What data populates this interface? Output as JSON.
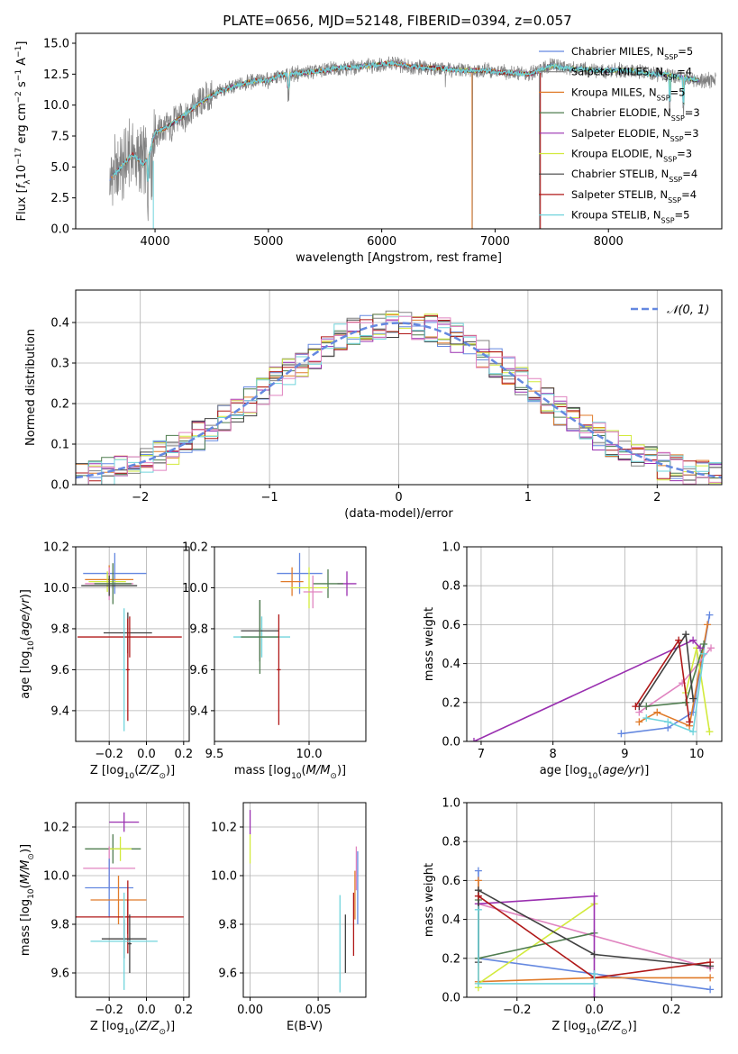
{
  "figure_title": "PLATE=0656, MJD=52148, FIBERID=0394, z=0.057",
  "colors": {
    "chabrier_miles": "#6488e0",
    "salpeter_miles": "#808080",
    "kroupa_miles": "#e07b2a",
    "chabrier_elodie": "#4f7d4f",
    "salpeter_elodie": "#9a30b0",
    "kroupa_elodie": "#d2ea3c",
    "chabrier_stelib": "#404040",
    "salpeter_stelib": "#b01818",
    "kroupa_stelib": "#70d4dc",
    "pink": "#e084c0",
    "observed": "#808080"
  },
  "chart_data": [
    {
      "id": "spectrum",
      "type": "line",
      "title": "PLATE=0656, MJD=52148, FIBERID=0394, z=0.057",
      "xlabel": "wavelength [Angstrom, rest frame]",
      "ylabel": "Flux [f_λ 10^-17 erg cm^-2 s^-1 A^-1]",
      "xlim": [
        3300,
        9000
      ],
      "ylim": [
        0,
        15.8
      ],
      "xticks": [
        "4000",
        "5000",
        "6000",
        "7000",
        "8000"
      ],
      "yticks": [
        "0.0",
        "2.5",
        "5.0",
        "7.5",
        "10.0",
        "12.5",
        "15.0"
      ],
      "grid": false,
      "legend_position": "right",
      "legend": [
        {
          "label": "Chabrier MILES, N",
          "sub": "SSP",
          "suffix": "=5",
          "color": "#6488e0"
        },
        {
          "label": "Salpeter MILES, N",
          "sub": "SSP",
          "suffix": "=4",
          "color": "#808080"
        },
        {
          "label": "Kroupa MILES, N",
          "sub": "SSP",
          "suffix": "=5",
          "color": "#e07b2a"
        },
        {
          "label": "Chabrier ELODIE, N",
          "sub": "SSP",
          "suffix": "=3",
          "color": "#4f7d4f"
        },
        {
          "label": "Salpeter ELODIE, N",
          "sub": "SSP",
          "suffix": "=3",
          "color": "#9a30b0"
        },
        {
          "label": "Kroupa ELODIE, N",
          "sub": "SSP",
          "suffix": "=3",
          "color": "#d2ea3c"
        },
        {
          "label": "Chabrier STELIB, N",
          "sub": "SSP",
          "suffix": "=4",
          "color": "#404040"
        },
        {
          "label": "Salpeter STELIB, N",
          "sub": "SSP",
          "suffix": "=4",
          "color": "#b01818"
        },
        {
          "label": "Kroupa STELIB, N",
          "sub": "SSP",
          "suffix": "=5",
          "color": "#70d4dc"
        }
      ],
      "continuum": {
        "x": [
          3600,
          3700,
          3800,
          3900,
          3950,
          4000,
          4100,
          4200,
          4300,
          4400,
          4500,
          4600,
          4700,
          4800,
          4900,
          5000,
          5100,
          5200,
          5300,
          5400,
          5500,
          5600,
          5700,
          5800,
          5900,
          6000,
          6100,
          6200,
          6300,
          6400,
          6500,
          6600,
          6700,
          6800,
          6900,
          7000,
          7100,
          7200,
          7300,
          7400,
          7500,
          7600,
          7700,
          7800,
          7900,
          8000,
          8100,
          8200,
          8300,
          8400,
          8500,
          8600,
          8800
        ],
        "y": [
          4.0,
          5.0,
          6.0,
          5.2,
          6.0,
          7.8,
          8.2,
          8.8,
          9.5,
          10.2,
          10.8,
          11.2,
          11.5,
          11.8,
          12.0,
          12.0,
          12.4,
          12.5,
          12.6,
          12.7,
          12.8,
          13.0,
          13.0,
          13.1,
          13.2,
          13.3,
          13.4,
          13.2,
          13.1,
          13.0,
          13.0,
          12.9,
          12.8,
          12.8,
          12.8,
          12.7,
          12.6,
          12.6,
          12.5,
          12.8,
          13.2,
          13.0,
          12.9,
          12.9,
          12.8,
          12.8,
          12.8,
          12.8,
          12.6,
          12.5,
          12.5,
          12.3,
          12.0
        ]
      }
    },
    {
      "id": "residuals",
      "type": "histogram",
      "xlabel": "(data-model)/error",
      "ylabel": "Normed distribution",
      "xlim": [
        -2.5,
        2.5
      ],
      "ylim": [
        0,
        0.48
      ],
      "xticks": [
        "−2",
        "−1",
        "0",
        "1",
        "2"
      ],
      "yticks": [
        "0.0",
        "0.1",
        "0.2",
        "0.3",
        "0.4"
      ],
      "grid": true,
      "legend": [
        {
          "label": "𝒩(0, 1)",
          "color": "#6488e0",
          "style": "dashed"
        }
      ],
      "bin_width": 0.1
    },
    {
      "id": "age_vs_Z",
      "type": "errorbar",
      "xlabel": "Z [log10(Z/Z⊙)]",
      "ylabel": "age  [log10(age/yr)]",
      "xlim": [
        -0.38,
        0.23
      ],
      "ylim": [
        9.25,
        10.2
      ],
      "xticks": [
        "−0.2",
        "0.0",
        "0.2"
      ],
      "yticks": [
        "9.4",
        "9.6",
        "9.8",
        "10.0",
        "10.2"
      ],
      "grid": true,
      "points": [
        {
          "x": -0.17,
          "y": 10.07,
          "xerr": 0.17,
          "yerr": 0.1,
          "color": "#6488e0"
        },
        {
          "x": -0.2,
          "y": 10.04,
          "xerr": 0.13,
          "yerr": 0.07,
          "color": "#e07b2a"
        },
        {
          "x": -0.21,
          "y": 10.03,
          "xerr": 0.1,
          "yerr": 0.05,
          "color": "#d2ea3c"
        },
        {
          "x": -0.2,
          "y": 10.02,
          "xerr": 0.13,
          "yerr": 0.08,
          "color": "#e084c0"
        },
        {
          "x": -0.18,
          "y": 10.02,
          "xerr": 0.1,
          "yerr": 0.1,
          "color": "#4f7d4f"
        },
        {
          "x": -0.2,
          "y": 10.01,
          "xerr": 0.15,
          "yerr": 0.05,
          "color": "#404040"
        },
        {
          "x": -0.1,
          "y": 9.78,
          "xerr": 0.13,
          "yerr": 0.1,
          "color": "#404040"
        },
        {
          "x": -0.09,
          "y": 9.76,
          "xerr": 0.28,
          "yerr": 0.1,
          "color": "#b01818"
        },
        {
          "x": -0.12,
          "y": 9.6,
          "xerr": 0.01,
          "yerr": 0.3,
          "color": "#70d4dc"
        },
        {
          "x": -0.1,
          "y": 9.6,
          "xerr": 0.01,
          "yerr": 0.25,
          "color": "#b01818"
        }
      ]
    },
    {
      "id": "age_vs_mass",
      "type": "errorbar",
      "xlabel": "mass [log10(M/M⊙)]",
      "xlim": [
        9.5,
        10.3
      ],
      "ylim": [
        9.25,
        10.2
      ],
      "xticks": [
        "9.5",
        "10.0"
      ],
      "yticks": [
        "9.4",
        "9.6",
        "9.8",
        "10.0",
        "10.2"
      ],
      "grid": true,
      "points": [
        {
          "x": 9.95,
          "y": 10.07,
          "xerr": 0.12,
          "yerr": 0.1,
          "color": "#6488e0"
        },
        {
          "x": 9.91,
          "y": 10.03,
          "xerr": 0.06,
          "yerr": 0.07,
          "color": "#e07b2a"
        },
        {
          "x": 10.2,
          "y": 10.02,
          "xerr": 0.05,
          "yerr": 0.06,
          "color": "#9a30b0"
        },
        {
          "x": 10.1,
          "y": 10.02,
          "xerr": 0.08,
          "yerr": 0.07,
          "color": "#4f7d4f"
        },
        {
          "x": 10.0,
          "y": 10.0,
          "xerr": 0.1,
          "yerr": 0.1,
          "color": "#d2ea3c"
        },
        {
          "x": 10.02,
          "y": 9.98,
          "xerr": 0.05,
          "yerr": 0.08,
          "color": "#e084c0"
        },
        {
          "x": 9.75,
          "y": 9.76,
          "xerr": 0.15,
          "yerr": 0.1,
          "color": "#70d4dc"
        },
        {
          "x": 9.74,
          "y": 9.79,
          "xerr": 0.1,
          "yerr": 0.15,
          "color": "#404040"
        },
        {
          "x": 9.74,
          "y": 9.76,
          "xerr": 0.1,
          "yerr": 0.18,
          "color": "#4f7d4f"
        },
        {
          "x": 9.84,
          "y": 9.6,
          "xerr": 0.01,
          "yerr": 0.27,
          "color": "#b01818"
        }
      ]
    },
    {
      "id": "weight_vs_age",
      "type": "line",
      "xlabel": "age  [log10(age/yr)]",
      "ylabel": "mass weight",
      "xlim": [
        6.8,
        10.35
      ],
      "ylim": [
        0,
        1
      ],
      "xticks": [
        "7",
        "8",
        "9",
        "10"
      ],
      "yticks": [
        "0.0",
        "0.2",
        "0.4",
        "0.6",
        "0.8",
        "1.0"
      ],
      "grid": true,
      "series": [
        {
          "color": "#6488e0",
          "x": [
            8.95,
            9.6,
            9.95,
            10.18
          ],
          "y": [
            0.04,
            0.07,
            0.15,
            0.65
          ]
        },
        {
          "color": "#e07b2a",
          "x": [
            9.2,
            9.45,
            9.9,
            10.15
          ],
          "y": [
            0.1,
            0.15,
            0.08,
            0.6
          ]
        },
        {
          "color": "#d2ea3c",
          "x": [
            9.85,
            10.0,
            10.18
          ],
          "y": [
            0.25,
            0.48,
            0.05
          ]
        },
        {
          "color": "#e084c0",
          "x": [
            9.2,
            9.8,
            10.2
          ],
          "y": [
            0.15,
            0.3,
            0.48
          ]
        },
        {
          "color": "#4f7d4f",
          "x": [
            9.3,
            9.85,
            10.1
          ],
          "y": [
            0.18,
            0.2,
            0.5
          ]
        },
        {
          "color": "#9a30b0",
          "x": [
            6.9,
            9.95,
            10.05
          ],
          "y": [
            0.0,
            0.52,
            0.48
          ]
        },
        {
          "color": "#404040",
          "x": [
            9.2,
            9.85,
            9.95
          ],
          "y": [
            0.18,
            0.55,
            0.22
          ]
        },
        {
          "color": "#b01818",
          "x": [
            9.15,
            9.75,
            9.9
          ],
          "y": [
            0.18,
            0.52,
            0.1
          ]
        },
        {
          "color": "#70d4dc",
          "x": [
            9.3,
            9.6,
            9.95,
            10.1
          ],
          "y": [
            0.12,
            0.1,
            0.05,
            0.45
          ]
        }
      ]
    },
    {
      "id": "mass_vs_Z",
      "type": "errorbar",
      "xlabel": "Z [log10(Z/Z⊙)]",
      "ylabel": "mass [log10(M/M⊙)]",
      "xlim": [
        -0.38,
        0.23
      ],
      "ylim": [
        9.5,
        10.3
      ],
      "xticks": [
        "−0.2",
        "0.0",
        "0.2"
      ],
      "yticks": [
        "9.6",
        "9.8",
        "10.0",
        "10.2"
      ],
      "grid": true,
      "points": [
        {
          "x": -0.12,
          "y": 10.22,
          "xerr": 0.08,
          "yerr": 0.04,
          "color": "#9a30b0"
        },
        {
          "x": -0.18,
          "y": 10.11,
          "xerr": 0.15,
          "yerr": 0.06,
          "color": "#4f7d4f"
        },
        {
          "x": -0.14,
          "y": 10.11,
          "xerr": 0.06,
          "yerr": 0.05,
          "color": "#d2ea3c"
        },
        {
          "x": -0.2,
          "y": 10.03,
          "xerr": 0.14,
          "yerr": 0.09,
          "color": "#e084c0"
        },
        {
          "x": -0.2,
          "y": 9.95,
          "xerr": 0.13,
          "yerr": 0.12,
          "color": "#6488e0"
        },
        {
          "x": -0.15,
          "y": 9.9,
          "xerr": 0.15,
          "yerr": 0.1,
          "color": "#e07b2a"
        },
        {
          "x": -0.1,
          "y": 9.83,
          "xerr": 0.3,
          "yerr": 0.07,
          "color": "#b01818"
        },
        {
          "x": -0.1,
          "y": 9.83,
          "xerr": 0.01,
          "yerr": 0.15,
          "color": "#b01818"
        },
        {
          "x": -0.12,
          "y": 9.74,
          "xerr": 0.12,
          "yerr": 0.08,
          "color": "#404040"
        },
        {
          "x": -0.09,
          "y": 9.72,
          "xerr": 0.01,
          "yerr": 0.12,
          "color": "#404040"
        },
        {
          "x": -0.12,
          "y": 9.73,
          "xerr": 0.18,
          "yerr": 0.2,
          "color": "#70d4dc"
        }
      ]
    },
    {
      "id": "mass_vs_EBV",
      "type": "errorbar",
      "xlabel": "E(B-V)",
      "xlim": [
        -0.005,
        0.085
      ],
      "ylim": [
        9.5,
        10.3
      ],
      "xticks": [
        "0.00",
        "0.05"
      ],
      "yticks": [
        "9.6",
        "9.8",
        "10.0",
        "10.2"
      ],
      "grid": true,
      "points": [
        {
          "x": 0.0,
          "y": 10.22,
          "xerr": 0,
          "yerr": 0.05,
          "color": "#9a30b0"
        },
        {
          "x": 0.0,
          "y": 10.11,
          "xerr": 0,
          "yerr": 0.06,
          "color": "#d2ea3c"
        },
        {
          "x": 0.078,
          "y": 10.03,
          "xerr": 0,
          "yerr": 0.09,
          "color": "#e084c0"
        },
        {
          "x": 0.077,
          "y": 9.92,
          "xerr": 0,
          "yerr": 0.1,
          "color": "#e07b2a"
        },
        {
          "x": 0.076,
          "y": 9.8,
          "xerr": 0,
          "yerr": 0.13,
          "color": "#b01818"
        },
        {
          "x": 0.079,
          "y": 9.95,
          "xerr": 0,
          "yerr": 0.15,
          "color": "#6488e0"
        },
        {
          "x": 0.07,
          "y": 9.72,
          "xerr": 0,
          "yerr": 0.12,
          "color": "#404040"
        },
        {
          "x": 0.066,
          "y": 9.72,
          "xerr": 0,
          "yerr": 0.2,
          "color": "#70d4dc"
        }
      ]
    },
    {
      "id": "weight_vs_Z",
      "type": "line",
      "xlabel": "Z [log10(Z/Z⊙)]",
      "ylabel": "mass weight",
      "xlim": [
        -0.33,
        0.33
      ],
      "ylim": [
        0,
        1
      ],
      "xticks": [
        "−0.2",
        "0.0",
        "0.2"
      ],
      "yticks": [
        "0.0",
        "0.2",
        "0.4",
        "0.6",
        "0.8",
        "1.0"
      ],
      "grid": true,
      "series": [
        {
          "color": "#6488e0",
          "x": [
            -0.3,
            -0.3,
            0.0,
            0.3
          ],
          "y": [
            0.65,
            0.2,
            0.12,
            0.04
          ]
        },
        {
          "color": "#e07b2a",
          "x": [
            -0.3,
            -0.3,
            0.0,
            0.3
          ],
          "y": [
            0.6,
            0.08,
            0.1,
            0.1
          ]
        },
        {
          "color": "#d2ea3c",
          "x": [
            -0.3,
            -0.3,
            0.0
          ],
          "y": [
            0.05,
            0.07,
            0.48
          ]
        },
        {
          "color": "#e084c0",
          "x": [
            -0.3,
            0.3
          ],
          "y": [
            0.48,
            0.15
          ]
        },
        {
          "color": "#4f7d4f",
          "x": [
            -0.3,
            -0.3,
            0.0
          ],
          "y": [
            0.5,
            0.2,
            0.33
          ]
        },
        {
          "color": "#9a30b0",
          "x": [
            -0.3,
            0.0,
            0.0
          ],
          "y": [
            0.48,
            0.52,
            0.0
          ]
        },
        {
          "color": "#404040",
          "x": [
            -0.3,
            -0.3,
            0.0,
            0.3
          ],
          "y": [
            0.18,
            0.55,
            0.22,
            0.16
          ]
        },
        {
          "color": "#b01818",
          "x": [
            -0.3,
            0.0,
            0.3
          ],
          "y": [
            0.52,
            0.1,
            0.18
          ]
        },
        {
          "color": "#70d4dc",
          "x": [
            -0.3,
            -0.3,
            0.0,
            0.0
          ],
          "y": [
            0.45,
            0.07,
            0.07,
            0.12
          ]
        }
      ]
    }
  ]
}
